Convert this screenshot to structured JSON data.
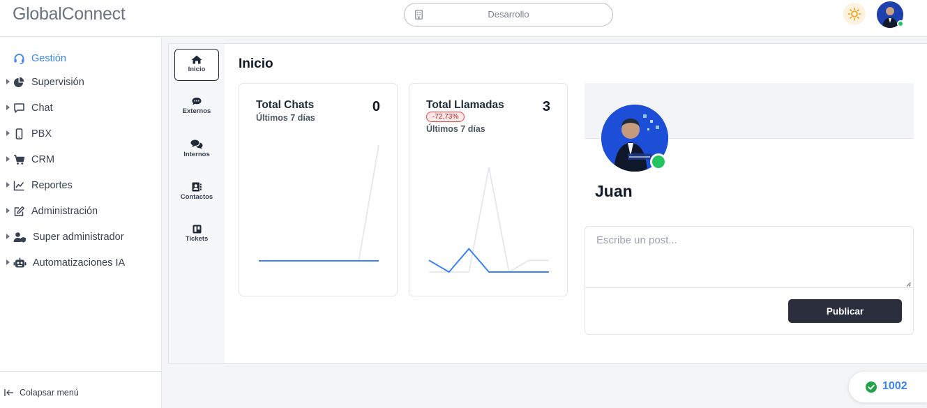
{
  "app": {
    "brand": "GlobalConnect",
    "workspace": "Desarrollo"
  },
  "colors": {
    "accent": "#3b82f6",
    "online": "#22c55e",
    "danger": "#ef4444",
    "dark_button": "#2b2f3d"
  },
  "sidebar": {
    "items": [
      {
        "label": "Gestión",
        "icon": "headset-icon",
        "active": true
      },
      {
        "label": "Supervisión",
        "icon": "pie-chart-icon"
      },
      {
        "label": "Chat",
        "icon": "chat-bubble-icon"
      },
      {
        "label": "PBX",
        "icon": "phone-icon"
      },
      {
        "label": "CRM",
        "icon": "cart-icon"
      },
      {
        "label": "Reportes",
        "icon": "line-chart-icon"
      },
      {
        "label": "Administración",
        "icon": "edit-icon"
      },
      {
        "label": "Super administrador",
        "icon": "user-shield-icon"
      },
      {
        "label": "Automatizaciones IA",
        "icon": "robot-icon"
      }
    ],
    "collapse_label": "Colapsar menú"
  },
  "subnav": {
    "items": [
      {
        "label": "Inicio",
        "icon": "home-icon",
        "active": true
      },
      {
        "label": "Externos",
        "icon": "comment-icon"
      },
      {
        "label": "Internos",
        "icon": "comments-icon"
      },
      {
        "label": "Contactos",
        "icon": "contact-card-icon"
      },
      {
        "label": "Tickets",
        "icon": "ticket-board-icon"
      }
    ]
  },
  "main": {
    "title": "Inicio"
  },
  "cards": {
    "chats": {
      "title": "Total Chats",
      "value": "0",
      "subtitle": "Últimos 7 días"
    },
    "calls": {
      "title": "Total Llamadas",
      "value": "3",
      "change": "-72.73%",
      "subtitle": "Últimos 7 días"
    }
  },
  "chart_data": [
    {
      "type": "line",
      "title": "Total Chats",
      "x": [
        1,
        2,
        3,
        4,
        5,
        6,
        7
      ],
      "series": [
        {
          "values": [
            0,
            0,
            0,
            0,
            0,
            0,
            0
          ],
          "color": "#3b82f6"
        },
        {
          "values": [
            0,
            0,
            0,
            0,
            0,
            0,
            1
          ],
          "color": "#e5e7eb"
        }
      ],
      "ylim": [
        0,
        1
      ]
    },
    {
      "type": "line",
      "title": "Total Llamadas",
      "x": [
        1,
        2,
        3,
        4,
        5,
        6,
        7
      ],
      "series": [
        {
          "values": [
            1,
            0,
            2,
            0,
            0,
            0,
            0
          ],
          "color": "#3b82f6"
        },
        {
          "values": [
            0,
            0,
            0,
            9,
            0,
            1,
            1
          ],
          "color": "#e5e7eb"
        }
      ],
      "ylim": [
        0,
        9
      ]
    }
  ],
  "profile": {
    "name": "Juan"
  },
  "post": {
    "placeholder": "Escribe un post...",
    "button_label": "Publicar"
  },
  "extension": {
    "number": "1002",
    "status": "online"
  }
}
